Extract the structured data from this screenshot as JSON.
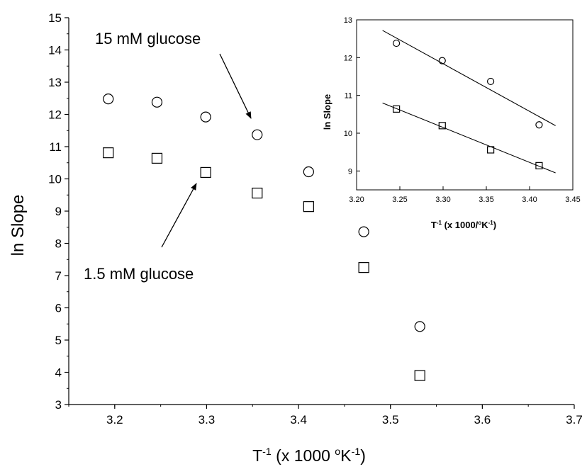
{
  "chart_data": [
    {
      "type": "scatter",
      "title": "",
      "xlabel": {
        "base": "T",
        "sup": "-1",
        "rest": " (x 1000 ",
        "sup2": "o",
        "rest2": "K",
        "sup3": "-1",
        "end": ")"
      },
      "ylabel": "ln Slope",
      "xlim": [
        3.15,
        3.7
      ],
      "ylim": [
        3,
        15
      ],
      "xticks": [
        3.2,
        3.3,
        3.4,
        3.5,
        3.6,
        3.7
      ],
      "yticks": [
        3,
        4,
        5,
        6,
        7,
        8,
        9,
        10,
        11,
        12,
        13,
        14,
        15
      ],
      "grid": false,
      "series": [
        {
          "name": "15 mM glucose",
          "marker": "circle",
          "x": [
            3.193,
            3.246,
            3.299,
            3.355,
            3.411,
            3.471,
            3.532
          ],
          "y": [
            12.48,
            12.38,
            11.92,
            11.37,
            10.22,
            8.36,
            5.42
          ]
        },
        {
          "name": "1.5 mM glucose",
          "marker": "square",
          "x": [
            3.193,
            3.246,
            3.299,
            3.355,
            3.411,
            3.471,
            3.532
          ],
          "y": [
            10.81,
            10.64,
            10.2,
            9.56,
            9.14,
            7.25,
            3.9
          ]
        }
      ],
      "annotations": [
        {
          "text": "15 mM glucose",
          "series": "15 mM glucose",
          "arrow_to": [
            3.355,
            11.37
          ]
        },
        {
          "text": "1.5 mM glucose",
          "series": "1.5 mM glucose",
          "arrow_to": [
            3.299,
            10.2
          ]
        }
      ]
    },
    {
      "type": "scatter",
      "title": "",
      "xlabel": {
        "base": "T",
        "sup": "-1",
        "rest": " (x 1000/",
        "sup2": "o",
        "rest2": "K",
        "sup3": "-1",
        "end": ")"
      },
      "ylabel": "ln Slope",
      "xlim": [
        3.2,
        3.45
      ],
      "ylim": [
        8.5,
        13
      ],
      "xticks": [
        3.2,
        3.25,
        3.3,
        3.35,
        3.4,
        3.45
      ],
      "xtick_labels": [
        "3.20",
        "3.25",
        "3.30",
        "3.35",
        "3.40",
        "3.45"
      ],
      "yticks": [
        9,
        10,
        11,
        12,
        13
      ],
      "grid": false,
      "series": [
        {
          "name": "15 mM glucose",
          "marker": "circle",
          "x": [
            3.246,
            3.299,
            3.355,
            3.411
          ],
          "y": [
            12.38,
            11.92,
            11.37,
            10.22
          ],
          "fit_line": {
            "x": [
              3.23,
              3.43
            ],
            "y": [
              12.72,
              10.2
            ]
          }
        },
        {
          "name": "1.5 mM glucose",
          "marker": "square",
          "x": [
            3.246,
            3.299,
            3.355,
            3.411
          ],
          "y": [
            10.64,
            10.2,
            9.56,
            9.14
          ],
          "fit_line": {
            "x": [
              3.23,
              3.43
            ],
            "y": [
              10.8,
              8.95
            ]
          }
        }
      ]
    }
  ]
}
